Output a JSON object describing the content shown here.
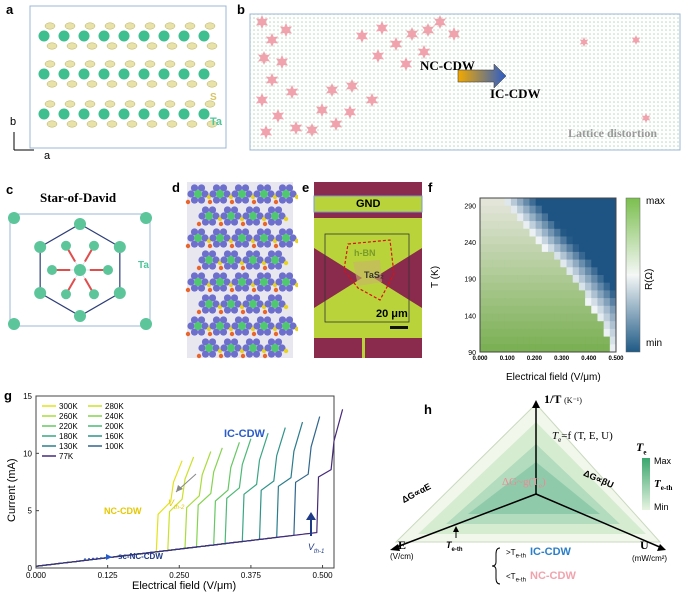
{
  "panels": {
    "a": {
      "label": "a",
      "s_label": "S",
      "ta_label": "Ta",
      "axis_b": "b",
      "axis_a": "a"
    },
    "b": {
      "label": "b",
      "nc": "NC-CDW",
      "ic": "IC-CDW",
      "lattice": "Lattice distortion"
    },
    "c": {
      "label": "c",
      "title": "Star-of-David",
      "ta_label": "Ta"
    },
    "d": {
      "label": "d"
    },
    "e": {
      "label": "e",
      "gnd": "GND",
      "hbn": "h-BN",
      "tas2": "TaS₂",
      "scale": "20 μm"
    },
    "f": {
      "label": "f",
      "ylabel": "T (K)",
      "xlabel": "Electrical field  (V/μm)",
      "yticks": [
        "290",
        "240",
        "190",
        "140",
        "90"
      ],
      "xticks": [
        "0.000",
        "0.100",
        "0.200",
        "0.300",
        "0.400",
        "0.500"
      ],
      "cbar_max": "max",
      "cbar_min": "min",
      "cbar_label": "R(Ω)"
    },
    "g": {
      "label": "g",
      "ylabel": "Current (mA)",
      "xlabel": "Electrical field  (V/μm)",
      "yticks": [
        "0",
        "5",
        "10",
        "15"
      ],
      "xticks": [
        "0.000",
        "0.125",
        "0.250",
        "0.375",
        "0.500"
      ],
      "ic_label": "IC-CDW",
      "nc_label": "NC-CDW",
      "sc_label": "sc-NC-CDW",
      "vth2": "V",
      "vth2_sub": "th-2",
      "vth1": "V",
      "vth1_sub": "th-1"
    },
    "h": {
      "label": "h",
      "top_axis": "1/T",
      "top_unit": "(K⁻¹)",
      "left_axis": "E",
      "left_unit": "(V/cm)",
      "right_axis": "U",
      "right_unit": "(mW/cm²)",
      "te_formula": "T",
      "te_sub": "e",
      "te_rest": "=f (T, E, U)",
      "center": "ΔG~g(T",
      "center_sub": "e",
      "center_close": ")",
      "left_rel": "ΔG∝αE",
      "right_rel": "ΔG∝βU",
      "teth": "T",
      "teth_sub": "e-th",
      "gt": ">T",
      "lt": "<T",
      "ic": "IC-CDW",
      "nc": "NC-CDW",
      "legend_te": "T",
      "legend_te_sub": "e",
      "legend_max": "Max",
      "legend_min": "Min",
      "legend_mid": "T",
      "legend_mid_sub": "e-th"
    }
  },
  "chart_data": [
    {
      "type": "heatmap",
      "title": "",
      "xlabel": "Electrical field  (V/μm)",
      "ylabel": "T (K)",
      "xlim": [
        0.0,
        0.5
      ],
      "ylim": [
        90,
        300
      ],
      "colorbar": {
        "label": "R(Ω)",
        "max": "max",
        "min": "min"
      },
      "boundary_field_vs_T": [
        [
          0.08,
          300
        ],
        [
          0.15,
          270
        ],
        [
          0.22,
          240
        ],
        [
          0.3,
          210
        ],
        [
          0.36,
          180
        ],
        [
          0.42,
          150
        ],
        [
          0.46,
          120
        ],
        [
          0.49,
          90
        ]
      ]
    },
    {
      "type": "line",
      "title": "",
      "xlabel": "Electrical field  (V/μm)",
      "ylabel": "Current (mA)",
      "xlim": [
        0.0,
        0.52
      ],
      "ylim": [
        0,
        15
      ],
      "series": [
        {
          "name": "300K",
          "color": "#e3e21e",
          "switch_field": 0.21
        },
        {
          "name": "280K",
          "color": "#cbe12a",
          "switch_field": 0.23
        },
        {
          "name": "260K",
          "color": "#a9dc3c",
          "switch_field": 0.26
        },
        {
          "name": "240K",
          "color": "#86d350",
          "switch_field": 0.28
        },
        {
          "name": "220K",
          "color": "#66c764",
          "switch_field": 0.31
        },
        {
          "name": "200K",
          "color": "#4cb977",
          "switch_field": 0.33
        },
        {
          "name": "180K",
          "color": "#3aa683",
          "switch_field": 0.36
        },
        {
          "name": "160K",
          "color": "#2f938a",
          "switch_field": 0.39
        },
        {
          "name": "130K",
          "color": "#2a7d8c",
          "switch_field": 0.42
        },
        {
          "name": "100K",
          "color": "#30668d",
          "switch_field": 0.45
        },
        {
          "name": "77K",
          "color": "#462a7a",
          "switch_field": 0.49
        }
      ]
    }
  ]
}
